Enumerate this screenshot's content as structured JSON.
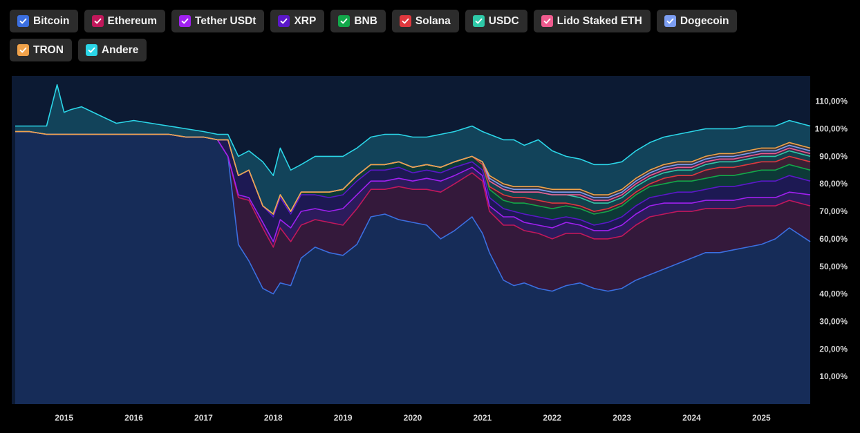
{
  "chart_data": {
    "type": "area",
    "stacked": true,
    "normalized": true,
    "x": [
      2014.3,
      2014.5,
      2014.75,
      2014.9,
      2015.0,
      2015.1,
      2015.25,
      2015.5,
      2015.75,
      2016.0,
      2016.25,
      2016.5,
      2016.75,
      2017.0,
      2017.2,
      2017.35,
      2017.5,
      2017.65,
      2017.85,
      2018.0,
      2018.1,
      2018.25,
      2018.4,
      2018.6,
      2018.8,
      2019.0,
      2019.2,
      2019.4,
      2019.6,
      2019.8,
      2020.0,
      2020.2,
      2020.4,
      2020.6,
      2020.85,
      2021.0,
      2021.1,
      2021.3,
      2021.45,
      2021.6,
      2021.8,
      2022.0,
      2022.2,
      2022.4,
      2022.6,
      2022.8,
      2023.0,
      2023.2,
      2023.4,
      2023.6,
      2023.8,
      2024.0,
      2024.2,
      2024.4,
      2024.6,
      2024.8,
      2025.0,
      2025.2,
      2025.4,
      2025.7
    ],
    "series": [
      {
        "name": "Bitcoin",
        "color": "#3b6fe0",
        "values": [
          99,
          99,
          98,
          98,
          98,
          98,
          98,
          98,
          98,
          98,
          98,
          98,
          97,
          97,
          96,
          90,
          58,
          52,
          42,
          40,
          44,
          43,
          53,
          57,
          55,
          54,
          58,
          68,
          69,
          67,
          66,
          65,
          60,
          63,
          68,
          62,
          55,
          45,
          43,
          44,
          42,
          41,
          43,
          44,
          42,
          41,
          42,
          45,
          47,
          49,
          51,
          53,
          55,
          55,
          56,
          57,
          58,
          60,
          64,
          59
        ]
      },
      {
        "name": "Ethereum",
        "color": "#c2185b",
        "values": [
          0,
          0,
          0,
          0,
          0,
          0,
          0,
          0,
          0,
          0,
          0,
          0,
          0,
          0,
          0,
          0,
          17,
          22,
          22,
          17,
          20,
          16,
          12,
          10,
          11,
          11,
          13,
          10,
          9,
          12,
          12,
          13,
          17,
          17,
          16,
          19,
          15,
          20,
          22,
          19,
          20,
          19,
          19,
          18,
          18,
          19,
          19,
          20,
          21,
          20,
          19,
          17,
          16,
          16,
          15,
          15,
          14,
          12,
          10,
          13
        ]
      },
      {
        "name": "Tether USDt",
        "color": "#a020f0",
        "values": [
          0,
          0,
          0,
          0,
          0,
          0,
          0,
          0,
          0,
          0,
          0,
          0,
          0,
          0,
          0,
          0,
          1,
          1,
          2,
          2,
          3,
          5,
          5,
          4,
          4,
          6,
          5,
          3,
          3,
          3,
          3,
          4,
          4,
          3,
          2,
          2,
          2,
          3,
          3,
          3,
          3,
          4,
          4,
          3,
          3,
          3,
          4,
          4,
          4,
          4,
          3,
          3,
          3,
          3,
          3,
          3,
          3,
          3,
          3,
          4
        ]
      },
      {
        "name": "XRP",
        "color": "#5b17c9",
        "values": [
          0,
          0,
          0,
          0,
          0,
          0,
          0,
          0,
          0,
          0,
          0,
          0,
          0,
          0,
          0,
          6,
          7,
          10,
          6,
          9,
          8,
          5,
          6,
          5,
          5,
          5,
          5,
          4,
          4,
          4,
          3,
          3,
          3,
          3,
          2,
          2,
          3,
          3,
          2,
          3,
          3,
          3,
          2,
          2,
          2,
          3,
          3,
          3,
          3,
          3,
          4,
          4,
          4,
          5,
          5,
          5,
          6,
          6,
          6,
          5
        ]
      },
      {
        "name": "BNB",
        "color": "#12a84a",
        "values": [
          0,
          0,
          0,
          0,
          0,
          0,
          0,
          0,
          0,
          0,
          0,
          0,
          0,
          0,
          0,
          0,
          0,
          0,
          0,
          1,
          1,
          1,
          1,
          1,
          2,
          2,
          2,
          2,
          2,
          2,
          2,
          2,
          2,
          2,
          2,
          2,
          3,
          3,
          3,
          4,
          4,
          4,
          4,
          4,
          4,
          4,
          4,
          4,
          4,
          4,
          4,
          4,
          4,
          4,
          4,
          4,
          4,
          4,
          4,
          4
        ]
      },
      {
        "name": "Solana",
        "color": "#e0383e",
        "values": [
          0,
          0,
          0,
          0,
          0,
          0,
          0,
          0,
          0,
          0,
          0,
          0,
          0,
          0,
          0,
          0,
          0,
          0,
          0,
          0,
          0,
          0,
          0,
          0,
          0,
          0,
          0,
          0,
          0,
          0,
          0,
          0,
          0,
          0,
          0,
          0,
          1,
          2,
          2,
          2,
          2,
          2,
          1,
          1,
          1,
          1,
          1,
          1,
          1,
          2,
          2,
          2,
          3,
          3,
          3,
          3,
          3,
          3,
          3,
          3
        ]
      },
      {
        "name": "USDC",
        "color": "#2ec9a8",
        "values": [
          0,
          0,
          0,
          0,
          0,
          0,
          0,
          0,
          0,
          0,
          0,
          0,
          0,
          0,
          0,
          0,
          0,
          0,
          0,
          0,
          0,
          0,
          0,
          0,
          0,
          0,
          0,
          0,
          0,
          0,
          0,
          0,
          0,
          0,
          0,
          1,
          2,
          2,
          2,
          2,
          3,
          3,
          3,
          3,
          3,
          2,
          2,
          2,
          2,
          2,
          2,
          2,
          2,
          2,
          2,
          2,
          2,
          2,
          2,
          2
        ]
      },
      {
        "name": "Lido Staked ETH",
        "color": "#ef5b8e",
        "values": [
          0,
          0,
          0,
          0,
          0,
          0,
          0,
          0,
          0,
          0,
          0,
          0,
          0,
          0,
          0,
          0,
          0,
          0,
          0,
          0,
          0,
          0,
          0,
          0,
          0,
          0,
          0,
          0,
          0,
          0,
          0,
          0,
          0,
          0,
          0,
          0,
          0,
          0,
          0,
          0,
          0,
          0,
          0,
          1,
          1,
          1,
          1,
          1,
          1,
          1,
          1,
          1,
          1,
          1,
          1,
          1,
          1,
          1,
          1,
          1
        ]
      },
      {
        "name": "Dogecoin",
        "color": "#7c9ef2",
        "values": [
          0,
          0,
          0,
          0,
          0,
          0,
          0,
          0,
          0,
          0,
          0,
          0,
          0,
          0,
          0,
          0,
          0,
          0,
          0,
          0,
          0,
          0,
          0,
          0,
          0,
          0,
          0,
          0,
          0,
          0,
          0,
          0,
          0,
          0,
          0,
          0,
          1,
          1,
          1,
          1,
          1,
          1,
          1,
          1,
          1,
          1,
          1,
          1,
          1,
          1,
          1,
          1,
          1,
          1,
          1,
          1,
          1,
          1,
          1,
          1
        ]
      },
      {
        "name": "TRON",
        "color": "#f0a24a",
        "values": [
          0,
          0,
          0,
          0,
          0,
          0,
          0,
          0,
          0,
          0,
          0,
          0,
          0,
          0,
          0,
          0,
          0,
          0,
          0,
          0,
          0,
          0,
          0,
          0,
          0,
          0,
          0,
          0,
          0,
          0,
          0,
          0,
          0,
          0,
          0,
          0,
          1,
          1,
          1,
          1,
          1,
          1,
          1,
          1,
          1,
          1,
          1,
          1,
          1,
          1,
          1,
          1,
          1,
          1,
          1,
          1,
          1,
          1,
          1,
          1
        ]
      },
      {
        "name": "Andere",
        "color": "#2bd6e8",
        "values": [
          2,
          2,
          3,
          18,
          8,
          9,
          10,
          7,
          4,
          5,
          4,
          3,
          3,
          2,
          2,
          2,
          7,
          7,
          16,
          14,
          17,
          15,
          10,
          13,
          13,
          12,
          10,
          10,
          11,
          10,
          11,
          10,
          12,
          11,
          11,
          11,
          15,
          16,
          17,
          15,
          17,
          14,
          12,
          11,
          11,
          11,
          10,
          10,
          10,
          10,
          10,
          11,
          10,
          9,
          9,
          9,
          8,
          8,
          8,
          8
        ]
      }
    ],
    "y_ticks": [
      "10,00%",
      "20,00%",
      "30,00%",
      "40,00%",
      "50,00%",
      "60,00%",
      "70,00%",
      "80,00%",
      "90,00%",
      "100,00%",
      "110,00%"
    ],
    "x_ticks": [
      "2015",
      "2016",
      "2017",
      "2018",
      "2019",
      "2020",
      "2021",
      "2022",
      "2023",
      "2024",
      "2025"
    ],
    "x_tick_values": [
      2015,
      2016,
      2017,
      2018,
      2019,
      2020,
      2021,
      2022,
      2023,
      2024,
      2025
    ],
    "xlim": [
      2014.25,
      2025.7
    ],
    "ylim": [
      0,
      120
    ],
    "legend_position": "top",
    "grid": false,
    "background": "#000000"
  }
}
